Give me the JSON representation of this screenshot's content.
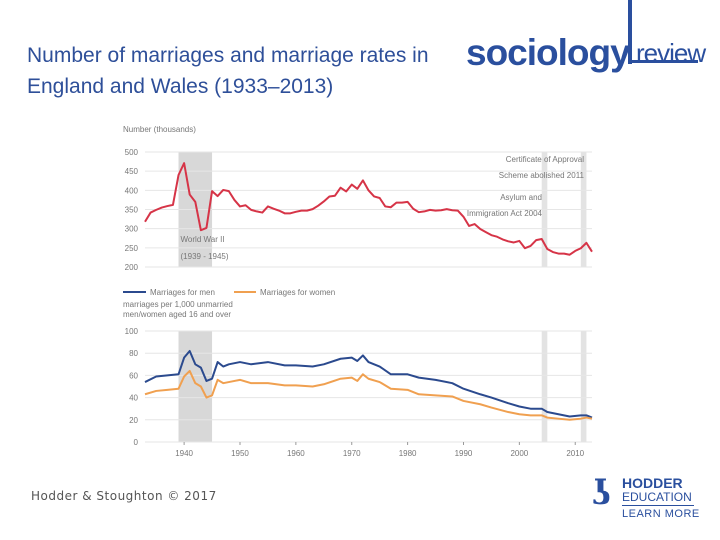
{
  "slide": {
    "title": "Number of marriages and marriage rates in England and Wales (1933–2013)",
    "footer": "Hodder & Stoughton © 2017"
  },
  "logo": {
    "main": "sociology",
    "sub": "review"
  },
  "publisher": {
    "name": "HODDER",
    "sub": "EDUCATION",
    "link": "LEARN MORE"
  },
  "colors": {
    "title": "#2e4f99",
    "marriages": "#d63447",
    "men": "#2b4a8e",
    "women": "#f0a050",
    "shade": "#d8d8d8",
    "grid": "#e6e6e6",
    "axis_text": "#777777"
  },
  "chart_data": [
    {
      "type": "line",
      "title": "",
      "ylabel": "Number (thousands)",
      "xlim": [
        1933,
        2013
      ],
      "ylim": [
        200,
        500
      ],
      "yticks": [
        200,
        250,
        300,
        350,
        400,
        450,
        500
      ],
      "grid": true,
      "shaded_regions": [
        {
          "from": 1939,
          "to": 1945,
          "label": "World War II",
          "sublabel": "(1939 - 1945)"
        },
        {
          "from": 2004,
          "to": 2005,
          "label": "Asylum and Immigration Act 2004"
        },
        {
          "from": 2011,
          "to": 2012,
          "label": "Certificate of Approval Scheme abolished 2011"
        }
      ],
      "annotations": [
        {
          "text": "World War II",
          "year": 1939
        },
        {
          "text": "(1939 - 1945)",
          "year": 1939
        },
        {
          "text": "Certificate of Approval",
          "year": 2011
        },
        {
          "text": "Scheme abolished 2011",
          "year": 2011
        },
        {
          "text": "Asylum and",
          "year": 2004
        },
        {
          "text": "Immigration Act 2004",
          "year": 2004
        }
      ],
      "series": [
        {
          "name": "",
          "color_key": "marriages",
          "x": [
            1933,
            1934,
            1935,
            1936,
            1937,
            1938,
            1939,
            1940,
            1941,
            1942,
            1943,
            1944,
            1945,
            1946,
            1947,
            1948,
            1949,
            1950,
            1951,
            1952,
            1953,
            1954,
            1955,
            1956,
            1957,
            1958,
            1959,
            1960,
            1961,
            1962,
            1963,
            1964,
            1965,
            1966,
            1967,
            1968,
            1969,
            1970,
            1971,
            1972,
            1973,
            1974,
            1975,
            1976,
            1977,
            1978,
            1979,
            1980,
            1981,
            1982,
            1983,
            1984,
            1985,
            1986,
            1987,
            1988,
            1989,
            1990,
            1991,
            1992,
            1993,
            1994,
            1995,
            1996,
            1997,
            1998,
            1999,
            2000,
            2001,
            2002,
            2003,
            2004,
            2005,
            2006,
            2007,
            2008,
            2009,
            2010,
            2011,
            2012,
            2013
          ],
          "values": [
            318,
            342,
            349,
            355,
            359,
            362,
            440,
            471,
            389,
            370,
            296,
            302,
            398,
            385,
            401,
            398,
            375,
            358,
            361,
            349,
            345,
            342,
            358,
            352,
            347,
            340,
            340,
            344,
            347,
            347,
            351,
            360,
            371,
            384,
            386,
            407,
            397,
            415,
            404,
            426,
            400,
            384,
            380,
            358,
            356,
            368,
            368,
            370,
            352,
            343,
            345,
            349,
            347,
            348,
            351,
            348,
            347,
            331,
            307,
            312,
            299,
            291,
            283,
            279,
            272,
            267,
            264,
            268,
            249,
            255,
            270,
            273,
            247,
            239,
            235,
            235,
            232,
            242,
            249,
            263,
            240
          ]
        }
      ]
    },
    {
      "type": "line",
      "title": "",
      "ylabel": "marriages per 1,000 unmarried men/women aged 16 and over",
      "xlim": [
        1933,
        2013
      ],
      "ylim": [
        0,
        100
      ],
      "yticks": [
        0,
        20,
        40,
        60,
        80,
        100
      ],
      "xticks": [
        1940,
        1950,
        1960,
        1970,
        1980,
        1990,
        2000,
        2010
      ],
      "grid": true,
      "legend": "top-left",
      "series": [
        {
          "name": "Marriages for men",
          "color_key": "men",
          "x": [
            1933,
            1935,
            1937,
            1939,
            1940,
            1941,
            1942,
            1943,
            1944,
            1945,
            1946,
            1947,
            1948,
            1950,
            1952,
            1955,
            1958,
            1960,
            1963,
            1965,
            1968,
            1970,
            1971,
            1972,
            1973,
            1975,
            1977,
            1980,
            1982,
            1985,
            1988,
            1990,
            1993,
            1995,
            1998,
            2000,
            2002,
            2004,
            2005,
            2007,
            2009,
            2011,
            2012,
            2013
          ],
          "values": [
            54,
            59,
            60,
            61,
            76,
            82,
            70,
            67,
            55,
            57,
            72,
            68,
            70,
            72,
            70,
            72,
            69,
            69,
            68,
            70,
            75,
            76,
            73,
            78,
            72,
            68,
            61,
            61,
            58,
            56,
            53,
            48,
            43,
            40,
            35,
            32,
            30,
            30,
            27,
            25,
            23,
            24,
            24,
            22
          ]
        },
        {
          "name": "Marriages for women",
          "color_key": "women",
          "x": [
            1933,
            1935,
            1937,
            1939,
            1940,
            1941,
            1942,
            1943,
            1944,
            1945,
            1946,
            1947,
            1948,
            1950,
            1952,
            1955,
            1958,
            1960,
            1963,
            1965,
            1968,
            1970,
            1971,
            1972,
            1973,
            1975,
            1977,
            1980,
            1982,
            1985,
            1988,
            1990,
            1993,
            1995,
            1998,
            2000,
            2002,
            2004,
            2005,
            2007,
            2009,
            2011,
            2012,
            2013
          ],
          "values": [
            43,
            46,
            47,
            48,
            59,
            64,
            53,
            50,
            40,
            42,
            56,
            53,
            54,
            56,
            53,
            53,
            51,
            51,
            50,
            52,
            57,
            58,
            55,
            61,
            57,
            54,
            48,
            47,
            43,
            42,
            41,
            37,
            34,
            31,
            27,
            25,
            24,
            24,
            22,
            21,
            20,
            21,
            22,
            21
          ]
        }
      ]
    }
  ]
}
